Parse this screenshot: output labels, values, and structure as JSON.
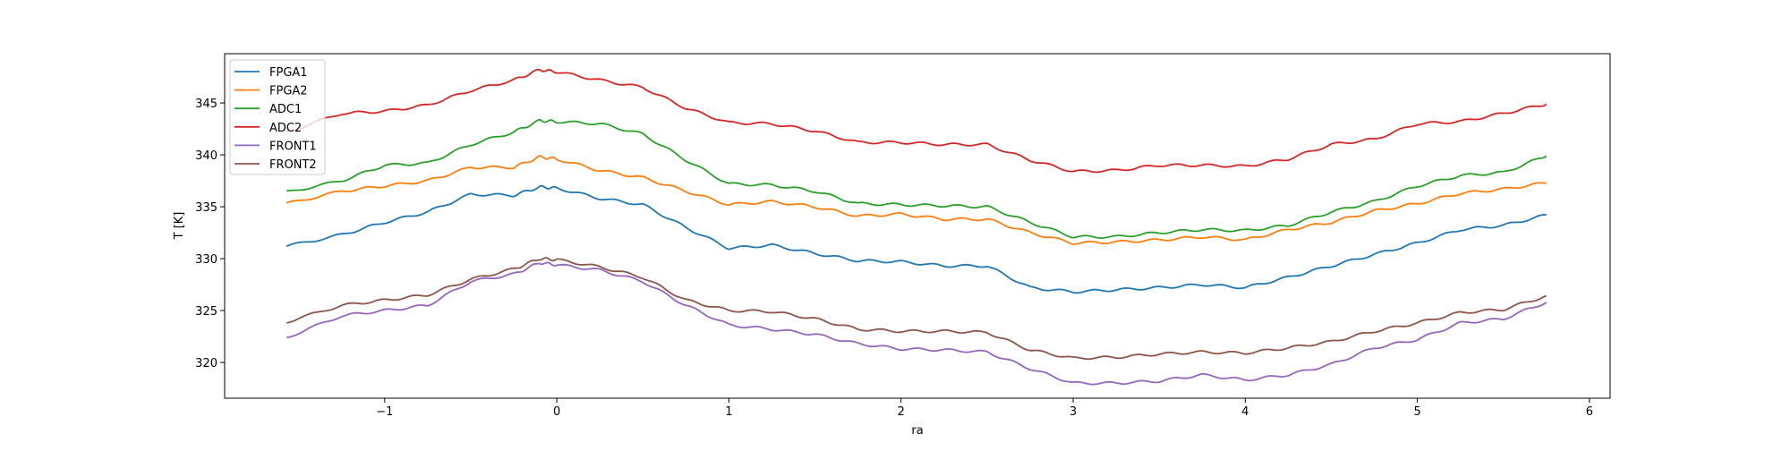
{
  "chart_data": {
    "type": "line",
    "title": "",
    "xlabel": "ra",
    "ylabel": "T [K]",
    "xlim": [
      -1.93,
      6.12
    ],
    "ylim": [
      316.55,
      349.75
    ],
    "xticks": [
      -1,
      0,
      1,
      2,
      3,
      4,
      5,
      6
    ],
    "yticks": [
      320,
      325,
      330,
      335,
      340,
      345
    ],
    "grid": false,
    "legend_position": "upper-left",
    "x": [
      -1.57,
      -1.25,
      -1,
      -0.75,
      -0.5,
      -0.25,
      -0.1,
      0,
      0.25,
      0.5,
      0.75,
      1,
      1.25,
      1.5,
      1.75,
      2,
      2.25,
      2.5,
      2.75,
      3,
      3.25,
      3.5,
      3.75,
      4,
      4.25,
      4.5,
      4.75,
      5,
      5.25,
      5.5,
      5.75
    ],
    "series": [
      {
        "name": "FPGA1",
        "color": "#1f77b4",
        "values": [
          331.2,
          332.3,
          333.5,
          334.5,
          336.2,
          336.1,
          336.9,
          336.8,
          335.8,
          335.2,
          333.0,
          331.0,
          331.3,
          330.5,
          329.8,
          329.7,
          329.3,
          329.3,
          327.2,
          326.8,
          327.0,
          327.2,
          327.5,
          327.2,
          328.2,
          329.3,
          330.4,
          331.5,
          332.8,
          333.2,
          334.2
        ]
      },
      {
        "name": "FPGA2",
        "color": "#ff7f0e",
        "values": [
          335.3,
          336.5,
          337.0,
          337.5,
          338.8,
          338.8,
          339.8,
          339.6,
          338.5,
          337.8,
          336.5,
          335.2,
          335.5,
          335.0,
          334.1,
          334.3,
          333.8,
          333.8,
          332.5,
          331.5,
          331.6,
          331.8,
          332.1,
          331.8,
          332.8,
          333.5,
          334.6,
          335.3,
          336.3,
          336.7,
          337.3
        ]
      },
      {
        "name": "ADC1",
        "color": "#2ca02c",
        "values": [
          336.4,
          337.5,
          339.0,
          339.2,
          341.0,
          342.2,
          343.3,
          343.2,
          343.0,
          342.0,
          339.5,
          337.2,
          337.1,
          336.5,
          335.3,
          335.2,
          335.1,
          335.0,
          333.5,
          332.1,
          332.1,
          332.5,
          332.8,
          332.7,
          333.2,
          334.5,
          335.5,
          337.0,
          338.0,
          338.3,
          339.9
        ]
      },
      {
        "name": "ADC2",
        "color": "#d62728",
        "values": [
          342.2,
          344.0,
          344.2,
          344.8,
          346.2,
          347.2,
          348.2,
          348.0,
          347.2,
          346.5,
          344.5,
          343.1,
          343.0,
          342.3,
          341.2,
          341.2,
          341.0,
          341.0,
          339.5,
          338.4,
          338.5,
          339.0,
          339.0,
          338.9,
          339.6,
          341.0,
          341.5,
          343.0,
          343.2,
          344.0,
          344.9
        ]
      },
      {
        "name": "FRONT1",
        "color": "#9467bd",
        "values": [
          322.4,
          324.5,
          325.0,
          325.5,
          327.8,
          328.5,
          329.6,
          329.4,
          328.9,
          327.8,
          325.5,
          323.6,
          323.2,
          322.7,
          321.8,
          321.3,
          321.2,
          321.0,
          319.4,
          318.0,
          318.0,
          318.2,
          318.8,
          318.3,
          318.8,
          319.8,
          321.4,
          322.2,
          323.8,
          324.2,
          325.8
        ]
      },
      {
        "name": "FRONT2",
        "color": "#8c564b",
        "values": [
          323.9,
          325.5,
          326.0,
          326.5,
          328.0,
          329.0,
          330.0,
          329.9,
          329.2,
          328.2,
          326.0,
          325.0,
          324.9,
          324.2,
          323.2,
          323.0,
          323.0,
          322.9,
          321.2,
          320.4,
          320.5,
          320.8,
          321.0,
          320.9,
          321.4,
          322.0,
          323.0,
          323.8,
          324.8,
          325.1,
          326.4
        ]
      }
    ]
  }
}
